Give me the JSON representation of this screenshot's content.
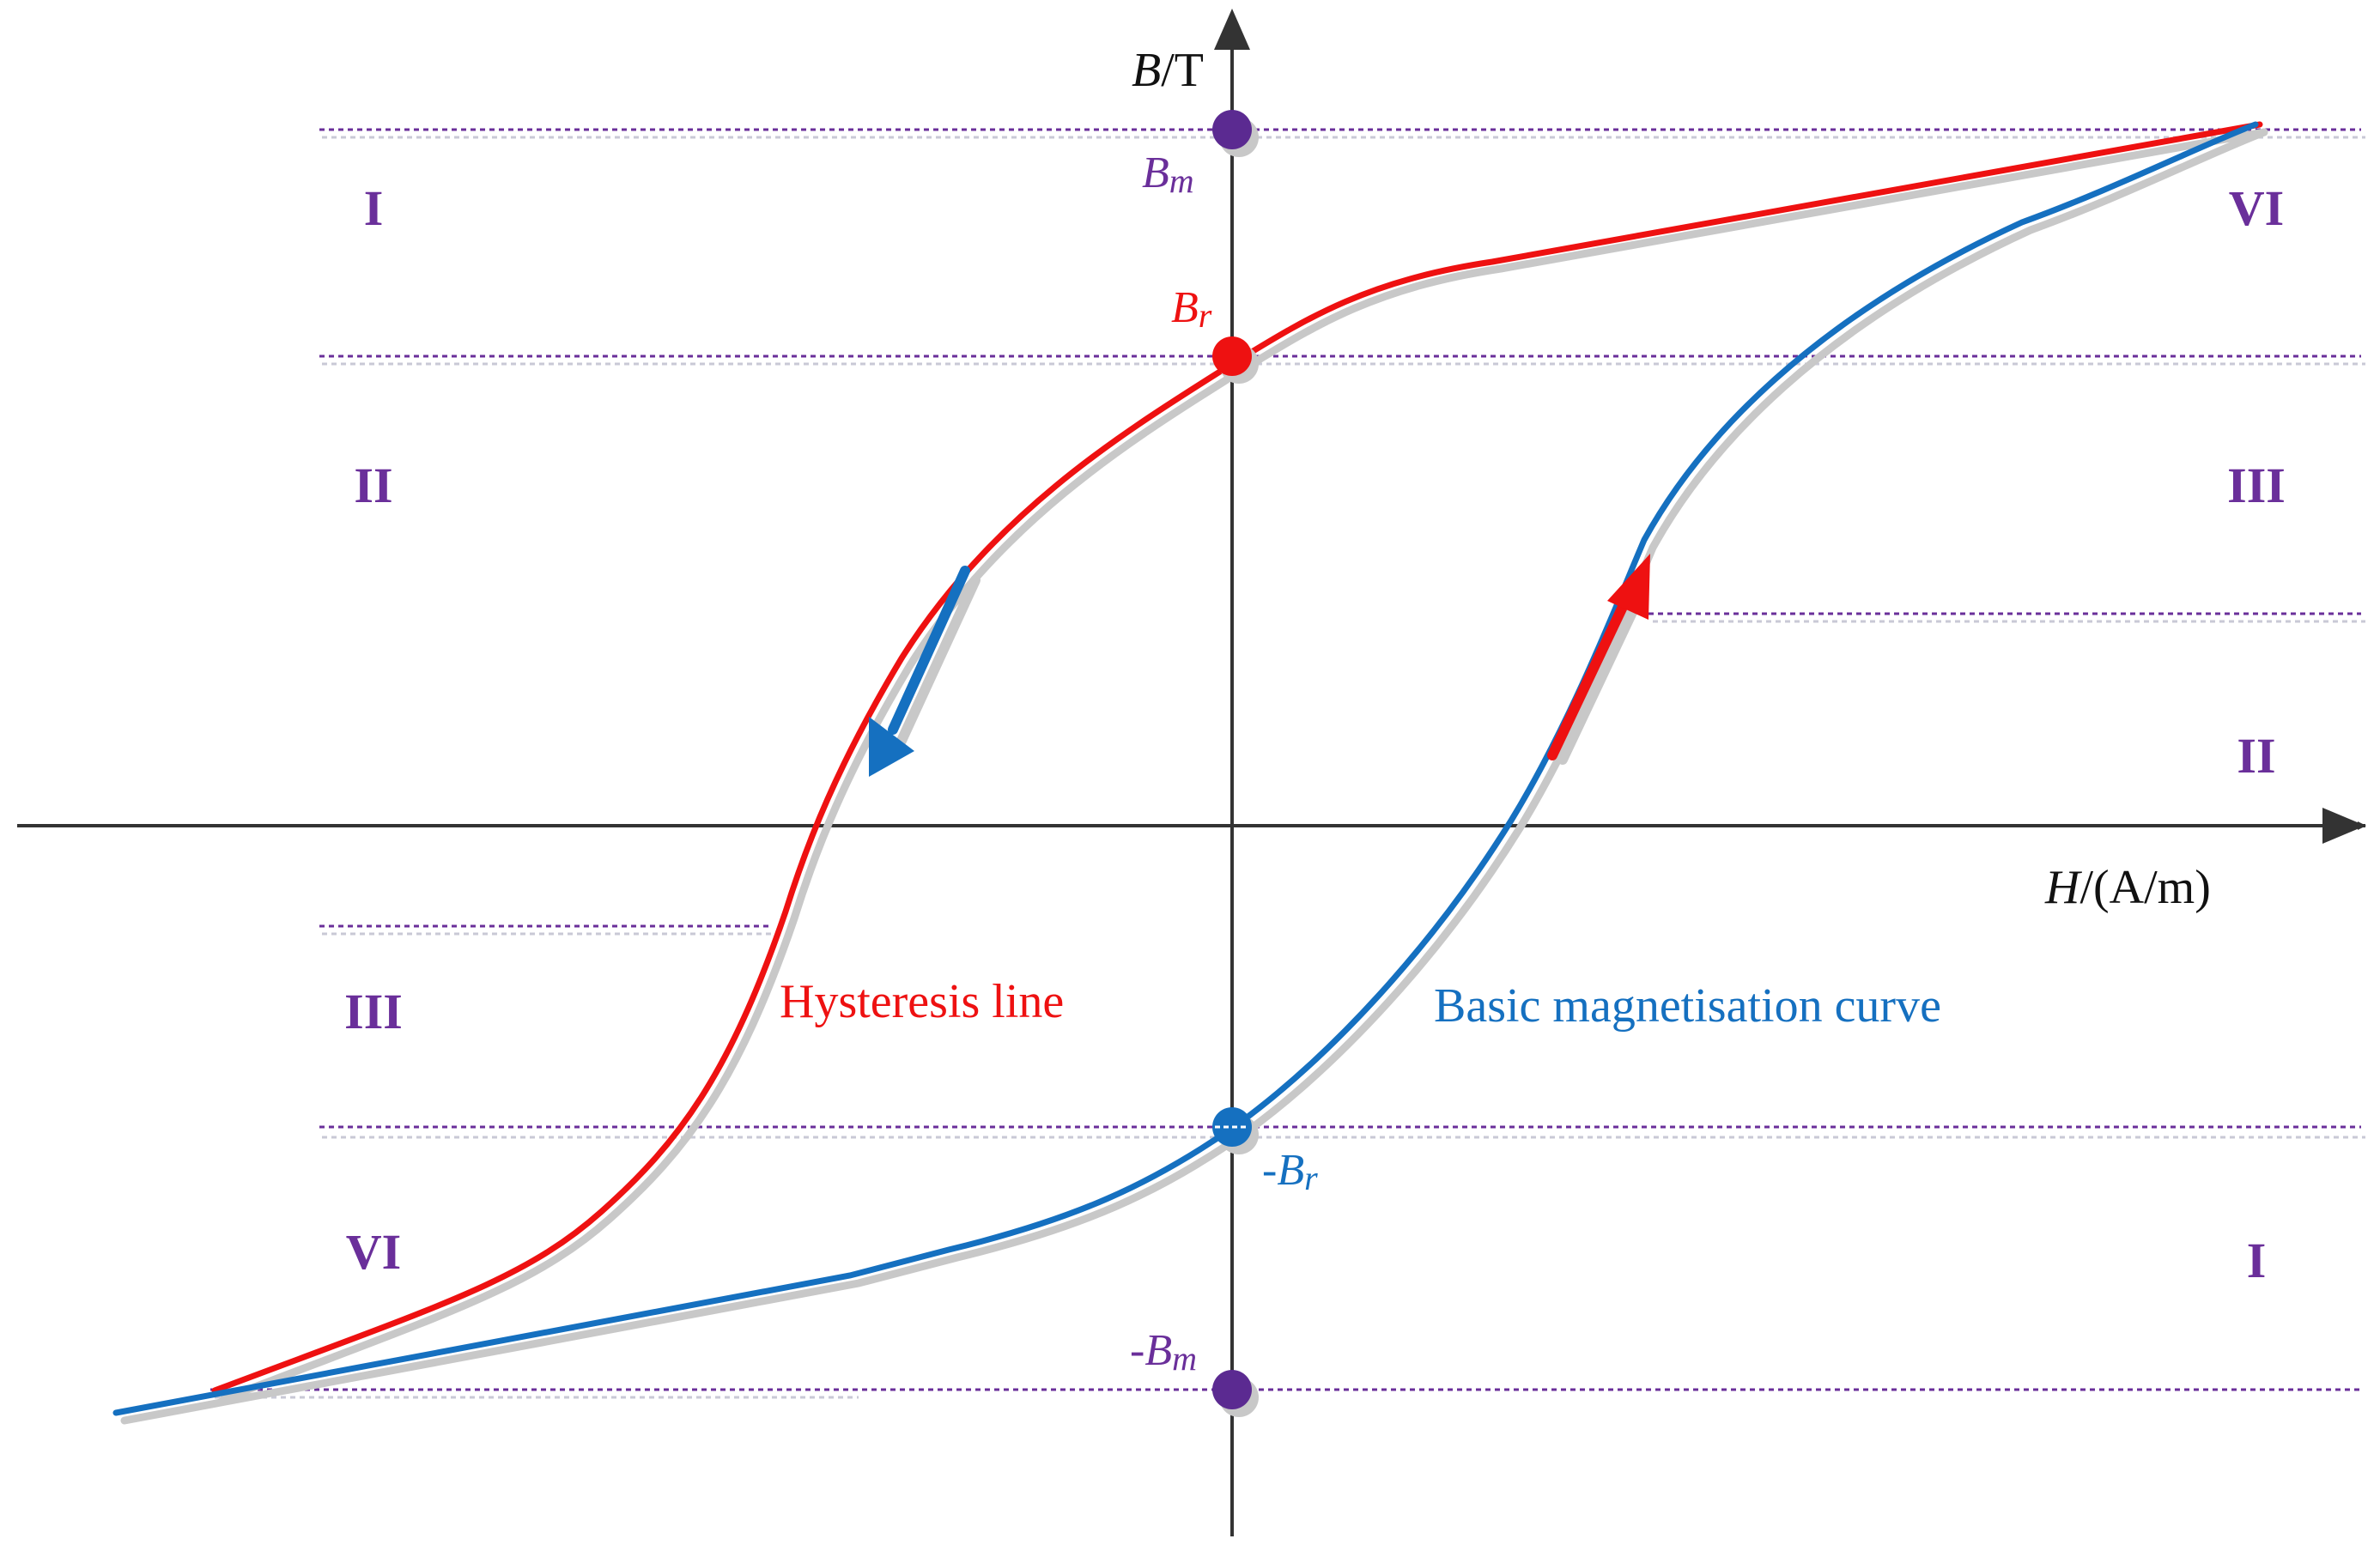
{
  "axes": {
    "y_label_var": "B",
    "y_label_unit": "/T",
    "x_label_var": "H",
    "x_label_unit": "/(A/m)"
  },
  "points": {
    "bm_label": "B",
    "bm_sub": "m",
    "br_label": "B",
    "br_sub": "r",
    "neg_br_label": "-B",
    "neg_br_sub": "r",
    "neg_bm_label": "-B",
    "neg_bm_sub": "m"
  },
  "regions": {
    "left": [
      "I",
      "II",
      "III",
      "VI"
    ],
    "right": [
      "VI",
      "III",
      "II",
      "I"
    ]
  },
  "curves": {
    "hysteresis_label": "Hysteresis line",
    "magnetisation_label": "Basic magnetisation curve"
  },
  "colors": {
    "axis": "#333333",
    "hysteresis": "#ee1111",
    "magnetisation": "#1570c0",
    "guide": "#6a2f9a",
    "region_text": "#6a2f9a",
    "shadow": "#c8c8c8"
  }
}
